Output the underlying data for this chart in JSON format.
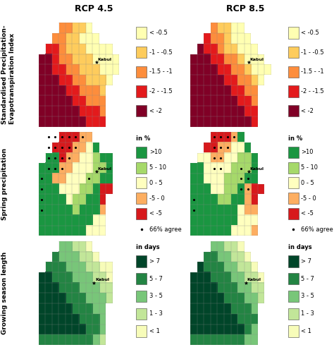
{
  "title_rcp45": "RCP 4.5",
  "title_rcp85": "RCP 8.5",
  "row_labels": [
    "Standardised Precipitation-\nEvapotranspiration Index",
    "Spring precipitation",
    "Growing season length"
  ],
  "legend1_labels": [
    "< -0.5",
    "-1 - -0.5",
    "-1.5 - -1",
    "-2 - -1.5",
    "< -2"
  ],
  "legend1_colors": [
    "#ffffb2",
    "#fecc5c",
    "#fd8d3c",
    "#e31a1c",
    "#800026"
  ],
  "legend2_title": "in %",
  "legend2_labels": [
    ">10",
    "5 - 10",
    "0 - 5",
    "-5 - 0",
    "< -5"
  ],
  "legend2_colors": [
    "#1a9641",
    "#a6d96a",
    "#ffffbf",
    "#fdae61",
    "#d7191c"
  ],
  "legend3_title": "in days",
  "legend3_labels": [
    "> 7",
    "5 - 7",
    "3 - 5",
    "1 - 3",
    "< 1"
  ],
  "legend3_colors": [
    "#004529",
    "#238443",
    "#78c679",
    "#c2e699",
    "#f7fcb9"
  ],
  "dot_label": "66% agree",
  "kabul_label": "Kabul",
  "bg_color": "#ffffff",
  "title_fontsize": 9,
  "row_label_fontsize": 6.5,
  "legend_fontsize": 6.0
}
